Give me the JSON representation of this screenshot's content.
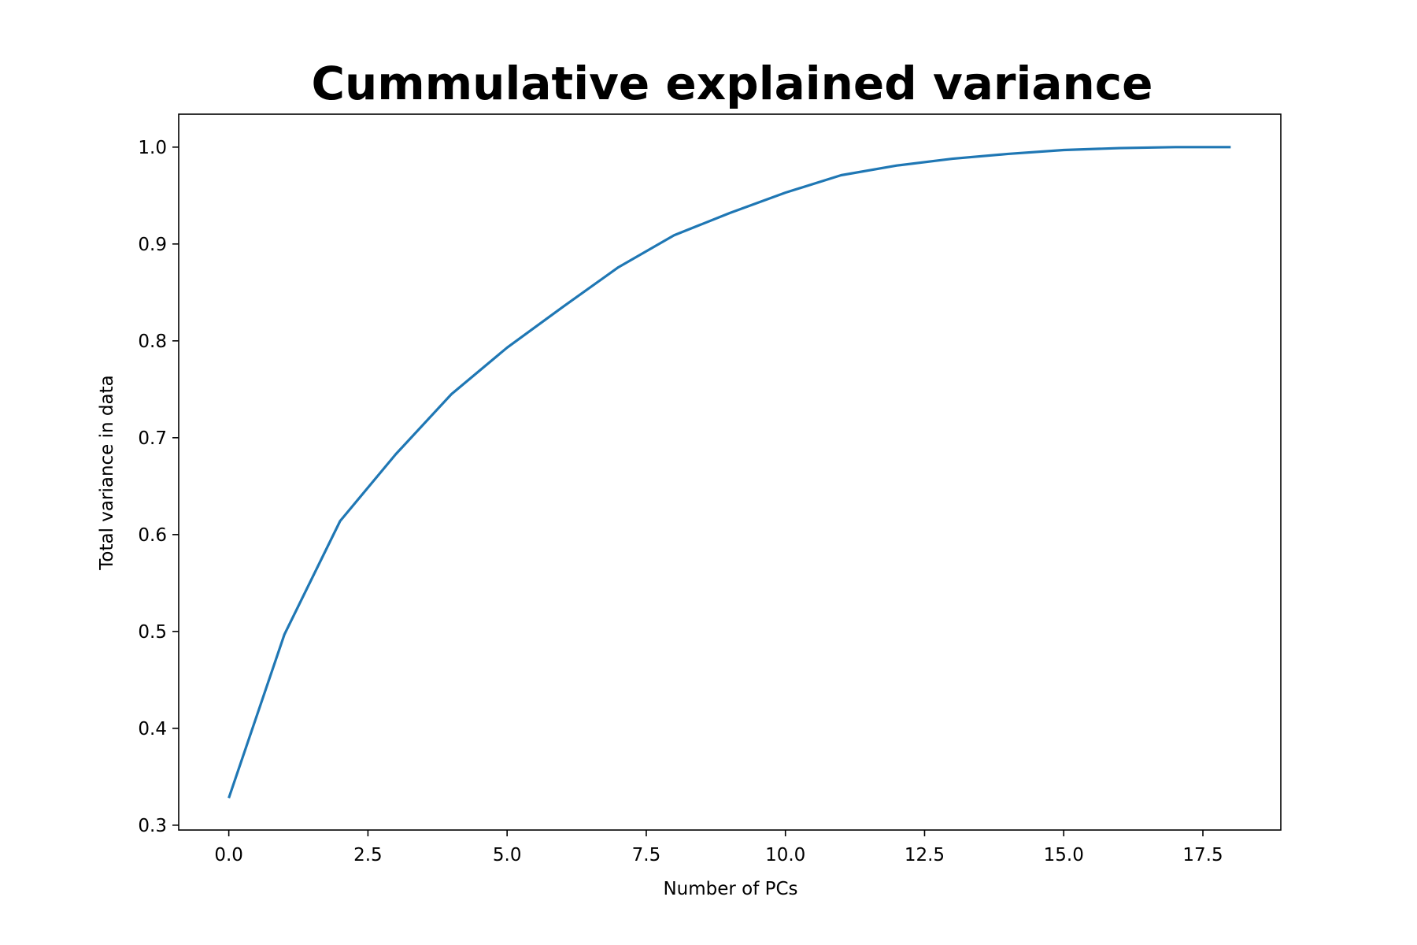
{
  "chart_data": {
    "type": "line",
    "title": "Cummulative explained variance",
    "xlabel": "Number of PCs",
    "ylabel": "Total variance in data",
    "xlim": [
      -0.9,
      18.9
    ],
    "ylim": [
      0.295,
      1.034
    ],
    "xticks": [
      0.0,
      2.5,
      5.0,
      7.5,
      10.0,
      12.5,
      15.0,
      17.5
    ],
    "xtick_labels": [
      "0.0",
      "2.5",
      "5.0",
      "7.5",
      "10.0",
      "12.5",
      "15.0",
      "17.5"
    ],
    "yticks": [
      0.3,
      0.4,
      0.5,
      0.6,
      0.7,
      0.8,
      0.9,
      1.0
    ],
    "ytick_labels": [
      "0.3",
      "0.4",
      "0.5",
      "0.6",
      "0.7",
      "0.8",
      "0.9",
      "1.0"
    ],
    "grid": false,
    "series": [
      {
        "color": "#1f77b4",
        "x": [
          0,
          1,
          2,
          3,
          4,
          5,
          6,
          7,
          8,
          9,
          10,
          11,
          12,
          13,
          14,
          15,
          16,
          17,
          18
        ],
        "y": [
          0.328,
          0.497,
          0.614,
          0.683,
          0.745,
          0.793,
          0.835,
          0.876,
          0.909,
          0.932,
          0.953,
          0.971,
          0.981,
          0.988,
          0.993,
          0.997,
          0.999,
          1.0,
          1.0
        ]
      }
    ]
  }
}
